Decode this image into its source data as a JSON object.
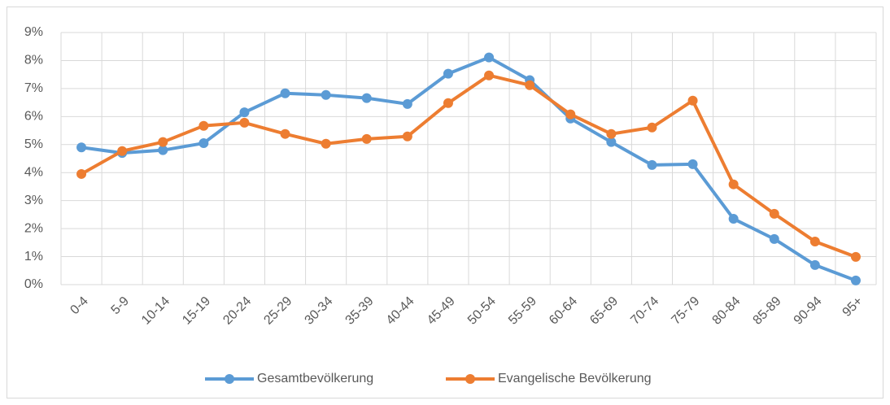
{
  "chart_data": {
    "type": "line",
    "categories": [
      "0-4",
      "5-9",
      "10-14",
      "15-19",
      "20-24",
      "25-29",
      "30-34",
      "35-39",
      "40-44",
      "45-49",
      "50-54",
      "55-59",
      "60-64",
      "65-69",
      "70-74",
      "75-79",
      "80-84",
      "85-89",
      "90-94",
      "95+"
    ],
    "series": [
      {
        "name": "Gesamtbevölkerung",
        "color": "#5b9bd5",
        "values": [
          4.9,
          4.7,
          4.8,
          5.05,
          6.15,
          6.83,
          6.77,
          6.66,
          6.45,
          7.53,
          8.11,
          7.3,
          5.93,
          5.09,
          4.27,
          4.3,
          2.35,
          1.63,
          0.7,
          0.15
        ]
      },
      {
        "name": "Evangelische Bevölkerung",
        "color": "#ed7d31",
        "values": [
          3.95,
          4.77,
          5.09,
          5.67,
          5.78,
          5.38,
          5.03,
          5.2,
          5.29,
          6.48,
          7.47,
          7.12,
          6.08,
          5.38,
          5.61,
          6.57,
          3.58,
          2.53,
          1.54,
          0.99
        ]
      }
    ],
    "ylim": [
      0,
      9
    ],
    "yticks": [
      {
        "value": 0,
        "label": "0%"
      },
      {
        "value": 1,
        "label": "1%"
      },
      {
        "value": 2,
        "label": "2%"
      },
      {
        "value": 3,
        "label": "3%"
      },
      {
        "value": 4,
        "label": "4%"
      },
      {
        "value": 5,
        "label": "5%"
      },
      {
        "value": 6,
        "label": "6%"
      },
      {
        "value": 7,
        "label": "7%"
      },
      {
        "value": 8,
        "label": "8%"
      },
      {
        "value": 9,
        "label": "9%"
      }
    ],
    "grid": true,
    "legend": "bottom"
  }
}
